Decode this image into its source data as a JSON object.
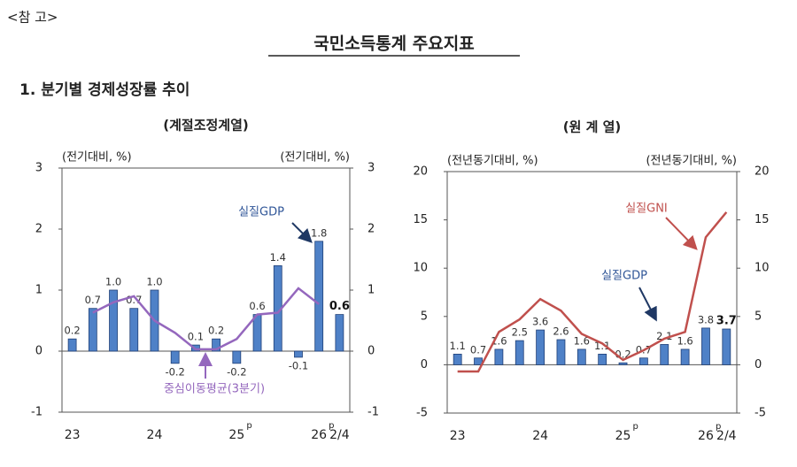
{
  "header": {
    "note": "<참 고>",
    "title": "국민소득통계 주요지표",
    "section": "1. 분기별 경제성장률 추이"
  },
  "chart_data": [
    {
      "type": "bar",
      "title": "(계절조정계열)",
      "y_label": "(전기대비, %)",
      "y2_label": "(전기대비, %)",
      "categories": [
        "23",
        null,
        null,
        null,
        "24",
        null,
        null,
        null,
        "25",
        null,
        null,
        null,
        "26",
        "2/4"
      ],
      "superscripts": [
        null,
        null,
        null,
        null,
        null,
        null,
        null,
        null,
        "p",
        null,
        null,
        null,
        "p",
        null
      ],
      "ylim": [
        -1,
        3
      ],
      "yticks": [
        -1,
        0,
        1,
        2,
        3
      ],
      "y2lim": [
        -1,
        3
      ],
      "y2ticks": [
        -1,
        0,
        1,
        2,
        3
      ],
      "series": [
        {
          "name": "실질GDP",
          "type": "bar",
          "color": "#4f81c7",
          "values": [
            0.2,
            0.7,
            1.0,
            0.7,
            1.0,
            -0.2,
            0.1,
            0.2,
            -0.2,
            0.6,
            1.4,
            -0.1,
            1.8,
            0.6
          ],
          "value_labels": [
            "0.2",
            "0.7",
            "1.0",
            "0.7",
            "1.0",
            "-0.2",
            "0.1",
            "0.2",
            "-0.2",
            "0.6",
            "1.4",
            "-0.1",
            "1.8",
            "0.6"
          ]
        },
        {
          "name": "중심이동평균(3분기)",
          "type": "line",
          "color": "#9467bd",
          "values": [
            null,
            0.63,
            0.8,
            0.9,
            0.5,
            0.3,
            0.03,
            0.03,
            0.2,
            0.6,
            0.63,
            1.03,
            0.77,
            null
          ]
        }
      ]
    },
    {
      "type": "bar",
      "title": "(원 계 열)",
      "y_label": "(전년동기대비, %)",
      "y2_label": "(전년동기대비, %)",
      "categories": [
        "23",
        null,
        null,
        null,
        "24",
        null,
        null,
        null,
        "25",
        null,
        null,
        null,
        "26",
        "2/4"
      ],
      "superscripts": [
        null,
        null,
        null,
        null,
        null,
        null,
        null,
        null,
        "p",
        null,
        null,
        null,
        "p",
        null
      ],
      "ylim": [
        -5,
        20
      ],
      "yticks": [
        -5,
        0,
        5,
        10,
        15,
        20
      ],
      "y2lim": [
        -5,
        20
      ],
      "y2ticks": [
        -5,
        0,
        5,
        10,
        15,
        20
      ],
      "series": [
        {
          "name": "실질GDP",
          "type": "bar",
          "color": "#4f81c7",
          "values": [
            1.1,
            0.7,
            1.6,
            2.5,
            3.6,
            2.6,
            1.6,
            1.1,
            0.2,
            0.7,
            2.1,
            1.6,
            3.8,
            3.7
          ],
          "value_labels": [
            "1.1",
            "0.7",
            "1.6",
            "2.5",
            "3.6",
            "2.6",
            "1.6",
            "1.1",
            "0.2",
            "0.7",
            "2.1",
            "1.6",
            "3.8",
            "3.7"
          ]
        },
        {
          "name": "실질GNI",
          "type": "line",
          "color": "#c0504d",
          "values": [
            -0.7,
            -0.7,
            3.4,
            4.7,
            6.8,
            5.6,
            3.2,
            2.2,
            0.5,
            1.5,
            2.7,
            3.4,
            13.2,
            15.8
          ]
        }
      ]
    }
  ]
}
